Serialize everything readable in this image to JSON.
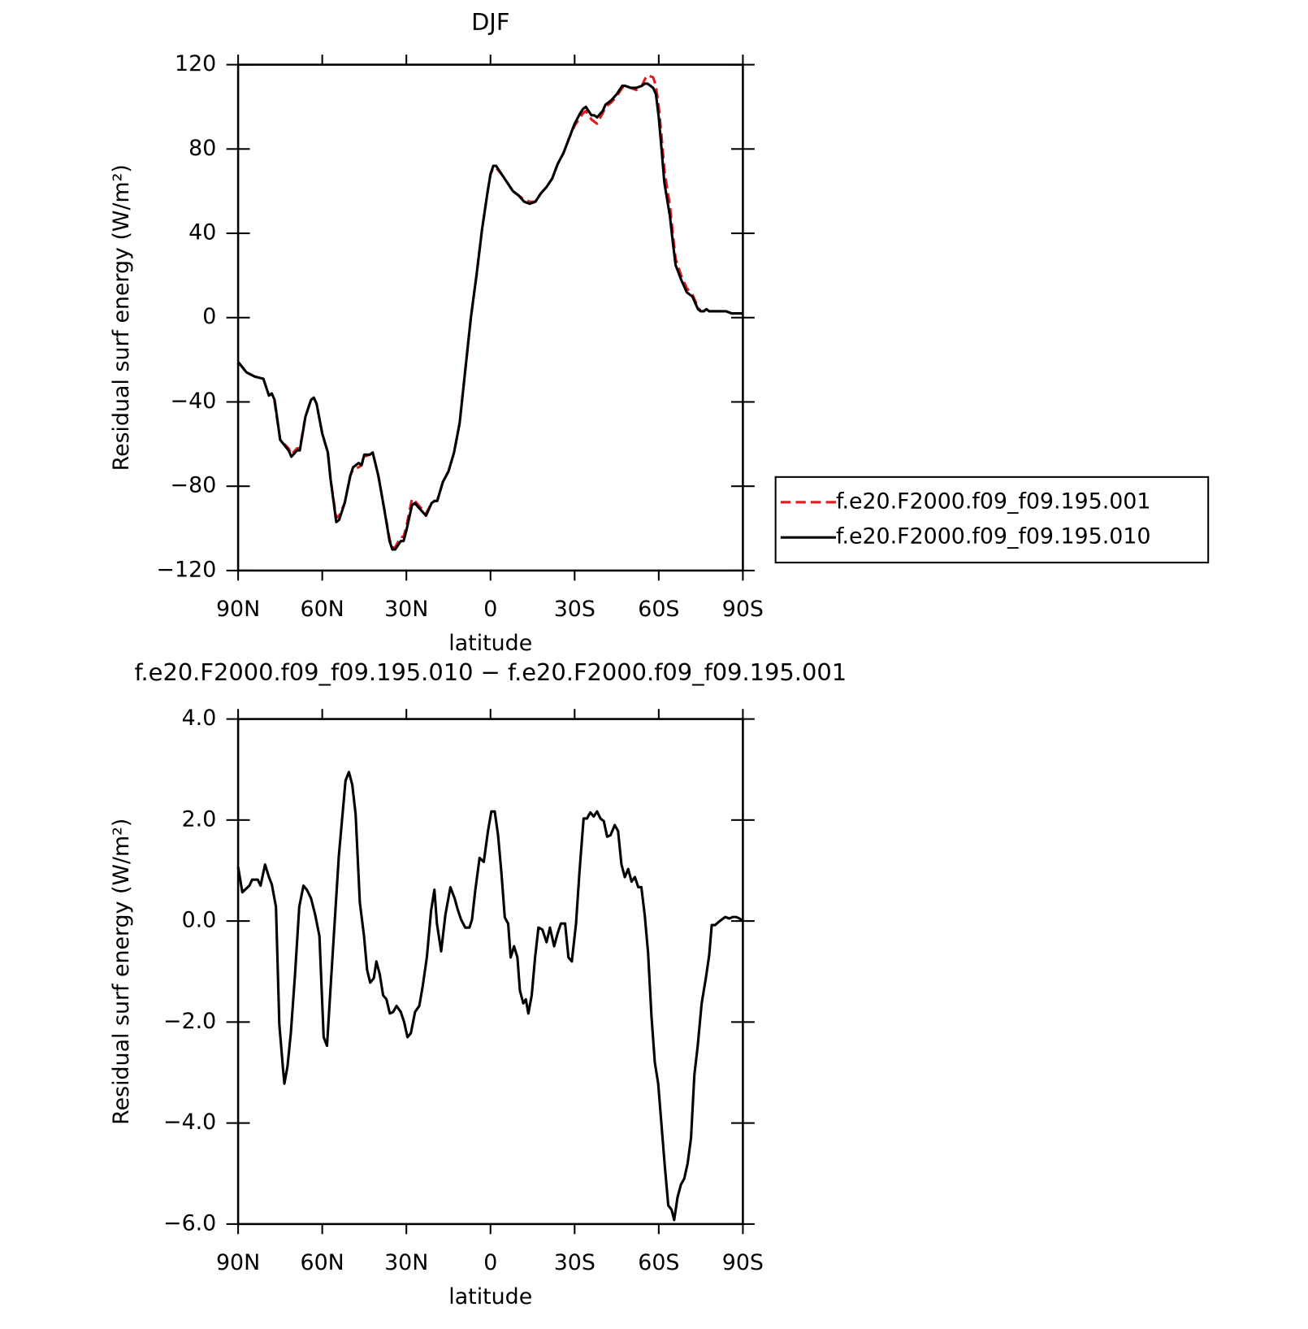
{
  "chart_data": [
    {
      "type": "line",
      "title": "DJF",
      "x_label": "latitude",
      "y_label": "Residual surf energy (W/m²)",
      "xlim": [
        90,
        -90
      ],
      "ylim": [
        -120,
        120
      ],
      "xticks": [
        {
          "value": 90,
          "label": "90N"
        },
        {
          "value": 60,
          "label": "60N"
        },
        {
          "value": 30,
          "label": "30N"
        },
        0,
        {
          "value": -30,
          "label": "30S"
        },
        {
          "value": -60,
          "label": "60S"
        },
        {
          "value": -90,
          "label": "90S"
        }
      ],
      "yticks": [
        {
          "value": -120,
          "label": "−120"
        },
        {
          "value": -80,
          "label": "−80"
        },
        {
          "value": -40,
          "label": "−40"
        },
        0,
        40,
        80,
        120
      ],
      "legend": "outside-right",
      "x": [
        90,
        87,
        84,
        81,
        79,
        78,
        77,
        75,
        72,
        71,
        69,
        68,
        66,
        64,
        63,
        62,
        60,
        58,
        57,
        55,
        54,
        52,
        50,
        49,
        47,
        46,
        45,
        43,
        42,
        40,
        38,
        36,
        35,
        34,
        32,
        31,
        30,
        28,
        27,
        25,
        23,
        21,
        20,
        19,
        17,
        15,
        13,
        11,
        9,
        7,
        5,
        3,
        1,
        0,
        -1,
        -2,
        -4,
        -6,
        -8,
        -10,
        -12,
        -14,
        -16,
        -18,
        -20,
        -22,
        -24,
        -26,
        -28,
        -30,
        -32,
        -33,
        -34,
        -35,
        -36,
        -37,
        -38,
        -40,
        -41,
        -43,
        -45,
        -46,
        -47,
        -48,
        -50,
        -52,
        -54,
        -55,
        -56,
        -58,
        -59,
        -60,
        -61,
        -62,
        -64,
        -65,
        -66,
        -68,
        -70,
        -72,
        -73,
        -74,
        -75,
        -76,
        -77,
        -78,
        -80,
        -82,
        -84,
        -86,
        -88,
        -90
      ],
      "series": [
        {
          "name": "f.e20.F2000.f09_f09.195.001",
          "color": "#e41a1c",
          "dash": true,
          "values": [
            -21,
            -26,
            -28,
            -29,
            -37,
            -36,
            -40,
            -58,
            -62,
            -65,
            -62,
            -62,
            -47,
            -39,
            -38,
            -41,
            -55,
            -64,
            -77,
            -95,
            -94,
            -88,
            -75,
            -72,
            -71,
            -70,
            -66,
            -65,
            -64,
            -75,
            -90,
            -105,
            -109,
            -109,
            -104,
            -104,
            -99,
            -86,
            -87,
            -90,
            -93,
            -88,
            -87,
            -87,
            -78,
            -73,
            -64,
            -50,
            -25,
            0,
            20,
            42,
            60,
            68,
            71,
            71,
            68,
            64,
            60,
            58,
            56,
            55,
            55,
            59,
            62,
            66,
            73,
            78,
            85,
            91,
            95,
            97,
            98,
            96,
            94,
            93,
            92,
            97,
            100,
            102,
            105,
            107,
            109,
            110,
            109,
            108,
            110,
            113,
            115,
            114,
            110,
            100,
            86,
            70,
            53,
            40,
            28,
            20,
            14,
            11,
            8,
            5,
            3,
            3,
            4,
            3,
            3,
            3,
            3,
            2,
            2,
            2
          ]
        },
        {
          "name": "f.e20.F2000.f09_f09.195.010",
          "color": "#000000",
          "dash": false,
          "values": [
            -21,
            -26,
            -28,
            -29,
            -37,
            -36,
            -39,
            -58,
            -63,
            -66,
            -63,
            -63,
            -47,
            -39,
            -38,
            -41,
            -55,
            -64,
            -77,
            -97,
            -96,
            -88,
            -75,
            -71,
            -69,
            -70,
            -65,
            -65,
            -64,
            -75,
            -90,
            -106,
            -110,
            -110,
            -106,
            -106,
            -101,
            -89,
            -88,
            -91,
            -94,
            -88,
            -87,
            -87,
            -78,
            -73,
            -64,
            -50,
            -25,
            0,
            20,
            42,
            60,
            68,
            72,
            72,
            68,
            64,
            60,
            58,
            55,
            54,
            55,
            59,
            62,
            66,
            73,
            78,
            85,
            92,
            97,
            99,
            100,
            98,
            96,
            96,
            95,
            98,
            101,
            103,
            106,
            108,
            110,
            110,
            109,
            109,
            110,
            111,
            111,
            109,
            106,
            95,
            80,
            64,
            48,
            36,
            25,
            18,
            12,
            10,
            7,
            4,
            3,
            3,
            4,
            3,
            3,
            3,
            3,
            2,
            2,
            2
          ]
        }
      ]
    },
    {
      "type": "line",
      "title": "f.e20.F2000.f09_f09.195.010 − f.e20.F2000.f09_f09.195.001",
      "x_label": "latitude",
      "y_label": "Residual surf energy (W/m²)",
      "xlim": [
        90,
        -90
      ],
      "ylim": [
        -6,
        4
      ],
      "xticks": [
        {
          "value": 90,
          "label": "90N"
        },
        {
          "value": 60,
          "label": "60N"
        },
        {
          "value": 30,
          "label": "30N"
        },
        0,
        {
          "value": -30,
          "label": "30S"
        },
        {
          "value": -60,
          "label": "60S"
        },
        {
          "value": -90,
          "label": "90S"
        }
      ],
      "yticks": [
        {
          "value": -6,
          "label": "−6.0"
        },
        {
          "value": -4,
          "label": "−4.0"
        },
        {
          "value": -2,
          "label": "−2.0"
        },
        {
          "value": 0,
          "label": "0.0"
        },
        {
          "value": 2,
          "label": "2.0"
        },
        {
          "value": 4,
          "label": "4.0"
        }
      ],
      "x": [
        90,
        88.5,
        86,
        85,
        83,
        82,
        80.4,
        79,
        78,
        76.5,
        75.3,
        74,
        73.5,
        72.4,
        71.2,
        69.7,
        68.2,
        66.7,
        65.5,
        64,
        62.5,
        61,
        59.5,
        58.3,
        57.1,
        55.6,
        54.1,
        52.9,
        51.7,
        50.5,
        49.3,
        48.1,
        46.6,
        45.1,
        44,
        42.9,
        41.6,
        40.7,
        39.5,
        38.3,
        37.1,
        35.9,
        34.7,
        33.5,
        32,
        30.8,
        29.6,
        28.4,
        26.9,
        25.4,
        24.2,
        22.7,
        21.2,
        20,
        19.1,
        17.6,
        16.1,
        14.3,
        12.8,
        11.7,
        10.5,
        9,
        7.5,
        6.6,
        5.4,
        3.9,
        2.4,
        0.9,
        -0.3,
        -1.5,
        -2.7,
        -3.9,
        -5.1,
        -6.3,
        -7.2,
        -8.4,
        -9.6,
        -10.5,
        -11.7,
        -12.6,
        -13.5,
        -14.7,
        -15.9,
        -17.1,
        -18.5,
        -20,
        -21.2,
        -22.7,
        -23.9,
        -25.1,
        -26.6,
        -27.8,
        -29,
        -30.5,
        -31.7,
        -33.2,
        -34.4,
        -35.6,
        -36.8,
        -38,
        -39.2,
        -40.4,
        -41.6,
        -42.8,
        -44.3,
        -45.5,
        -46.7,
        -47.9,
        -49.1,
        -50.3,
        -51.5,
        -52.7,
        -53.8,
        -55,
        -56.2,
        -57.4,
        -58.6,
        -59.8,
        -61,
        -62.2,
        -63.4,
        -64.6,
        -65.5,
        -66.7,
        -67.9,
        -69.1,
        -70.3,
        -71.5,
        -72.7,
        -73.9,
        -75.3,
        -76.8,
        -78,
        -78.9,
        -80.1,
        -81.3,
        -82.5,
        -83.7,
        -85.2,
        -86.4,
        -87.6,
        -88.8,
        -90
      ],
      "series": [
        {
          "color": "#000000",
          "dash": false,
          "values": [
            1.07,
            0.57,
            0.7,
            0.82,
            0.82,
            0.7,
            1.12,
            0.87,
            0.73,
            0.28,
            -2.05,
            -2.92,
            -3.22,
            -2.88,
            -2.22,
            -1.05,
            0.28,
            0.7,
            0.62,
            0.45,
            0.12,
            -0.3,
            -2.3,
            -2.47,
            -1.38,
            -0.05,
            1.28,
            2.03,
            2.78,
            2.95,
            2.7,
            2.12,
            0.37,
            -0.3,
            -0.97,
            -1.22,
            -1.13,
            -0.8,
            -1.05,
            -1.47,
            -1.55,
            -1.83,
            -1.8,
            -1.68,
            -1.8,
            -2.0,
            -2.3,
            -2.22,
            -1.8,
            -1.68,
            -1.3,
            -0.72,
            0.2,
            0.62,
            -0.05,
            -0.6,
            0.12,
            0.67,
            0.45,
            0.23,
            0.03,
            -0.13,
            -0.13,
            0.03,
            0.62,
            1.25,
            1.17,
            1.78,
            2.17,
            2.17,
            1.7,
            0.95,
            0.07,
            -0.05,
            -0.72,
            -0.5,
            -0.72,
            -1.38,
            -1.63,
            -1.55,
            -1.83,
            -1.47,
            -0.72,
            -0.13,
            -0.17,
            -0.42,
            -0.13,
            -0.5,
            -0.25,
            -0.05,
            -0.05,
            -0.72,
            -0.8,
            -0.05,
            0.95,
            2.03,
            2.03,
            2.15,
            2.07,
            2.17,
            2.03,
            1.98,
            1.67,
            1.7,
            1.9,
            1.78,
            1.12,
            0.87,
            1.03,
            0.78,
            0.87,
            0.67,
            0.67,
            0.12,
            -0.63,
            -1.88,
            -2.8,
            -3.22,
            -4.05,
            -4.88,
            -5.63,
            -5.72,
            -5.92,
            -5.47,
            -5.22,
            -5.1,
            -4.8,
            -4.3,
            -3.05,
            -2.47,
            -1.63,
            -1.13,
            -0.67,
            -0.08,
            -0.08,
            -0.02,
            0.03,
            0.08,
            0.05,
            0.08,
            0.08,
            0.05,
            0
          ]
        }
      ]
    }
  ]
}
